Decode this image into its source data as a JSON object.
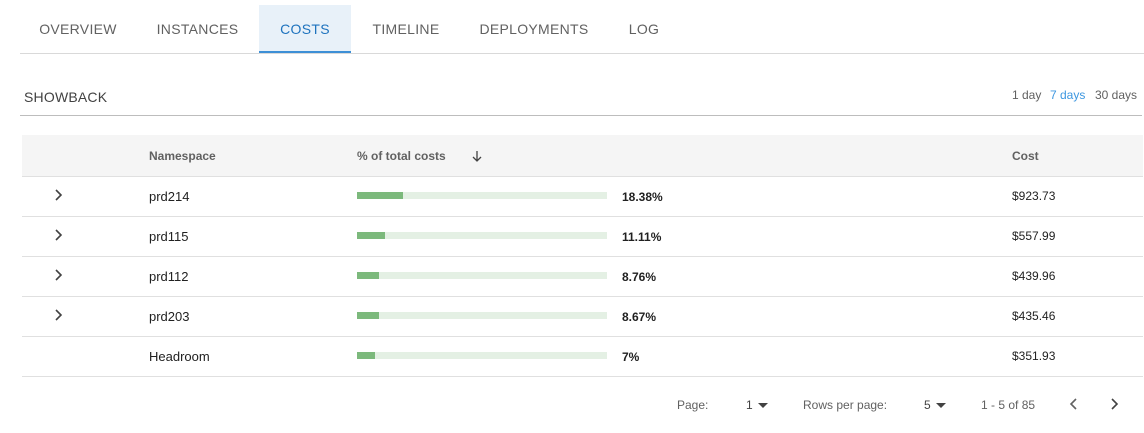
{
  "tabs": [
    {
      "label": "OVERVIEW",
      "active": false
    },
    {
      "label": "INSTANCES",
      "active": false
    },
    {
      "label": "COSTS",
      "active": true
    },
    {
      "label": "TIMELINE",
      "active": false
    },
    {
      "label": "DEPLOYMENTS",
      "active": false
    },
    {
      "label": "LOG",
      "active": false
    }
  ],
  "showback": {
    "title": "SHOWBACK",
    "ranges": [
      {
        "label": "1 day",
        "active": false
      },
      {
        "label": "7 days",
        "active": true
      },
      {
        "label": "30 days",
        "active": false
      }
    ]
  },
  "table": {
    "headers": {
      "namespace": "Namespace",
      "percent": "% of total costs",
      "cost": "Cost"
    },
    "sort_icon": "arrow-down-icon",
    "rows": [
      {
        "namespace": "prd214",
        "percent": "18.38%",
        "fraction": 0.1838,
        "cost": "$923.73",
        "expandable": true
      },
      {
        "namespace": "prd115",
        "percent": "11.11%",
        "fraction": 0.1111,
        "cost": "$557.99",
        "expandable": true
      },
      {
        "namespace": "prd112",
        "percent": "8.76%",
        "fraction": 0.0876,
        "cost": "$439.96",
        "expandable": true
      },
      {
        "namespace": "prd203",
        "percent": "8.67%",
        "fraction": 0.0867,
        "cost": "$435.46",
        "expandable": true
      },
      {
        "namespace": "Headroom",
        "percent": "7%",
        "fraction": 0.07,
        "cost": "$351.93",
        "expandable": false
      }
    ]
  },
  "pagination": {
    "page_label": "Page:",
    "page_value": "1",
    "rows_label": "Rows per page:",
    "rows_value": "5",
    "range_text": "1 - 5 of 85"
  },
  "colors": {
    "accent": "#3d97e0",
    "bar_fill": "#7cb97c",
    "bar_track": "#e4f0e4",
    "active_tab_bg": "#e8f1f9"
  }
}
